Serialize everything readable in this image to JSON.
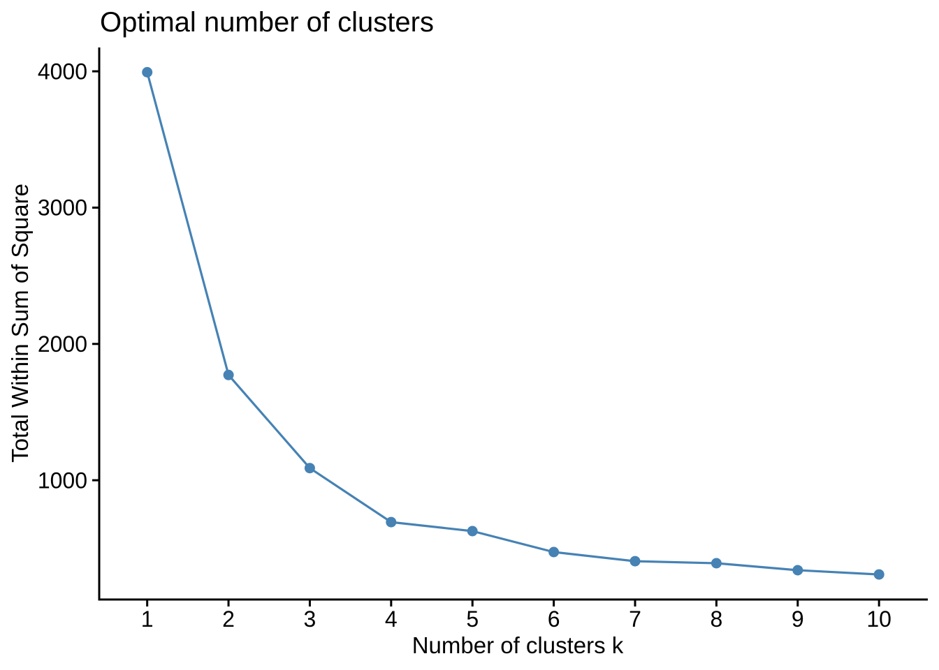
{
  "chart_data": {
    "type": "line",
    "title": "Optimal number of clusters",
    "xlabel": "Number of clusters k",
    "ylabel": "Total Within Sum of Square",
    "series": [
      {
        "name": "total-within-sum-of-square",
        "x": [
          1,
          2,
          3,
          4,
          5,
          6,
          7,
          8,
          9,
          10
        ],
        "y": [
          3993,
          1772,
          1089,
          693,
          627,
          473,
          406,
          391,
          340,
          309
        ]
      }
    ],
    "xticks": [
      "1",
      "2",
      "3",
      "4",
      "5",
      "6",
      "7",
      "8",
      "9",
      "10"
    ],
    "yticks": [
      "1000",
      "2000",
      "3000",
      "4000"
    ],
    "ytick_values": [
      1000,
      2000,
      3000,
      4000
    ],
    "xtick_values": [
      1,
      2,
      3,
      4,
      5,
      6,
      7,
      8,
      9,
      10
    ],
    "xlim": [
      0.41,
      10.6
    ],
    "ylim": [
      125,
      4175
    ],
    "grid": false,
    "legend": "none",
    "line_color": "#4682B4",
    "marker": "circle",
    "marker_color": "#4682B4",
    "axis_color": "#000000",
    "text_color": "#000000",
    "background_color": "#FFFFFF"
  }
}
